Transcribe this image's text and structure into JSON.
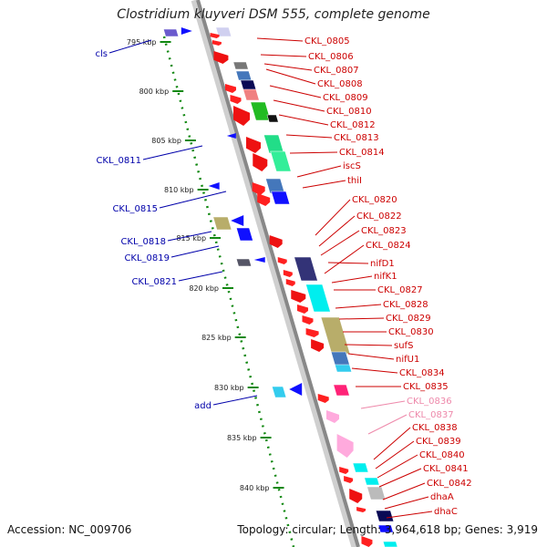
{
  "title": "Clostridium kluyveri DSM 555, complete genome",
  "footer": {
    "accession": "Accession: NC_009706",
    "stats": "Topology: circular; Length: 3,964,618 bp; Genes: 3,919"
  },
  "colors": {
    "strand_plus_label": "#cc0000",
    "strand_minus_label": "#0000aa",
    "pseudo_label": "#ee88aa",
    "backbone": "#888888",
    "tick": "#118811"
  },
  "ticks": [
    "795 kbp",
    "800 kbp",
    "805 kbp",
    "810 kbp",
    "815 kbp",
    "820 kbp",
    "825 kbp",
    "830 kbp",
    "835 kbp",
    "840 kbp"
  ],
  "right_labels": [
    "CKL_0805",
    "CKL_0806",
    "CKL_0807",
    "CKL_0808",
    "CKL_0809",
    "CKL_0810",
    "CKL_0812",
    "CKL_0813",
    "CKL_0814",
    "iscS",
    "thiI",
    "CKL_0820",
    "CKL_0822",
    "CKL_0823",
    "CKL_0824",
    "nifD1",
    "nifK1",
    "CKL_0827",
    "CKL_0828",
    "CKL_0829",
    "CKL_0830",
    "sufS",
    "nifU1",
    "CKL_0834",
    "CKL_0835",
    "CKL_0836",
    "CKL_0837",
    "CKL_0838",
    "CKL_0839",
    "CKL_0840",
    "CKL_0841",
    "CKL_0842",
    "dhaA",
    "dhaC"
  ],
  "pseudo_right_labels": [
    "CKL_0836",
    "CKL_0837"
  ],
  "left_labels": [
    "cls",
    "CKL_0811",
    "CKL_0815",
    "CKL_0818",
    "CKL_0819",
    "CKL_0821",
    "add"
  ]
}
